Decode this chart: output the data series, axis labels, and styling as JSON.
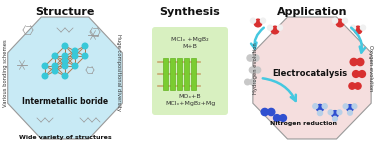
{
  "bg_color": "#ffffff",
  "left_oct_color": "#c8eaf5",
  "left_oct_edge": "#999999",
  "left_title": "Structure",
  "left_label1": "Intermetallic boride",
  "left_label2": "Wide variety of structures",
  "left_rot1": "Various bonding schemes",
  "left_rot2": "Huge compositional diversity",
  "mid_title": "Synthesis",
  "mid_bg": "#d8f0c0",
  "mid_line1": "MClₓ +MgB₂",
  "mid_line2": "M+B",
  "mid_line3": "MOₓ+B",
  "mid_line4": "MClₓ+MgB₂+Mg",
  "mid_bar_color": "#7acc30",
  "mid_bar_edge": "#55aa10",
  "mid_connector_color": "#c8a870",
  "right_oct_color": "#f5dede",
  "right_oct_edge": "#999999",
  "right_title": "Application",
  "right_center": "Electrocatalysis",
  "right_label1": "Hydrogen evolution",
  "right_label2": "Oxygen evolution",
  "right_label3": "Nitrogen reduction",
  "arrow_color": "#45c8e0",
  "red_col": "#d83030",
  "gray_col": "#c8c8c8",
  "white_col": "#f0f0f0",
  "blue_col": "#3050d0",
  "light_blue_col": "#b8d0e8"
}
